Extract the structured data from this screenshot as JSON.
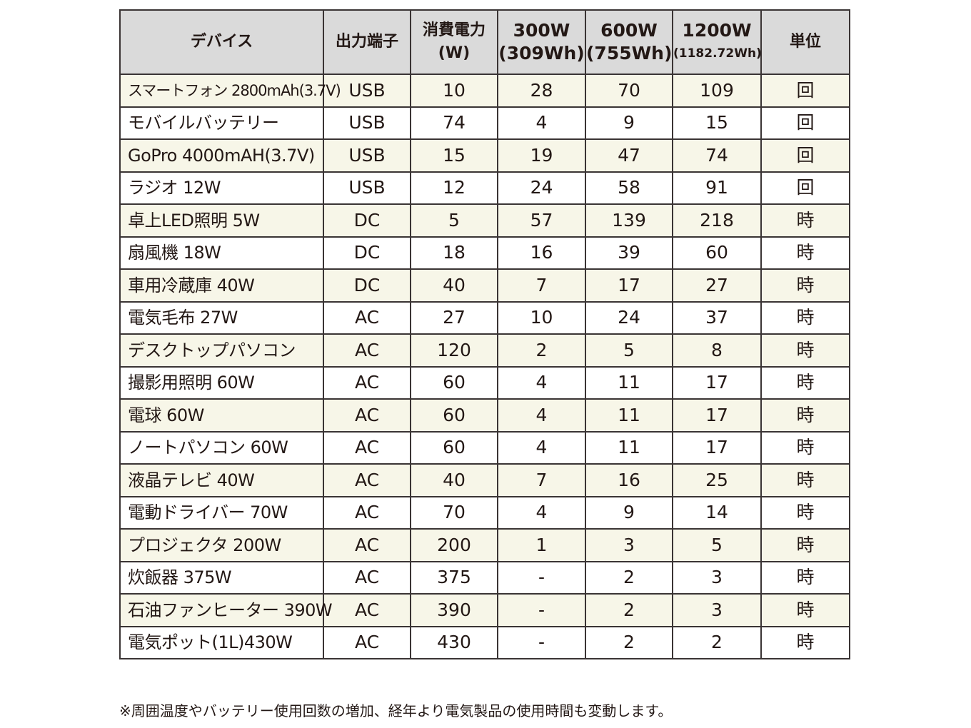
{
  "header": {
    "device": "デバイス",
    "port": "出力端子",
    "power_line1": "消費電力",
    "power_line2": "(W)",
    "cap300_line1": "300W",
    "cap300_line2": "(309Wh)",
    "cap600_line1": "600W",
    "cap600_line2": "(755Wh)",
    "cap1200_line1": "1200W",
    "cap1200_line2": "(1182.72Wh)",
    "unit": "単位"
  },
  "rows": [
    {
      "device": "スマートフォン 2800mAh(3.7V)",
      "port": "USB",
      "power": "10",
      "w300": "28",
      "w600": "70",
      "w1200": "109",
      "unit": "回"
    },
    {
      "device": "モバイルバッテリー",
      "port": "USB",
      "power": "74",
      "w300": "4",
      "w600": "9",
      "w1200": "15",
      "unit": "回"
    },
    {
      "device": "GoPro 4000mAH(3.7V)",
      "port": "USB",
      "power": "15",
      "w300": "19",
      "w600": "47",
      "w1200": "74",
      "unit": "回"
    },
    {
      "device": "ラジオ 12W",
      "port": "USB",
      "power": "12",
      "w300": "24",
      "w600": "58",
      "w1200": "91",
      "unit": "回"
    },
    {
      "device": "卓上LED照明 5W",
      "port": "DC",
      "power": "5",
      "w300": "57",
      "w600": "139",
      "w1200": "218",
      "unit": "時"
    },
    {
      "device": "扇風機 18W",
      "port": "DC",
      "power": "18",
      "w300": "16",
      "w600": "39",
      "w1200": "60",
      "unit": "時"
    },
    {
      "device": "車用冷蔵庫 40W",
      "port": "DC",
      "power": "40",
      "w300": "7",
      "w600": "17",
      "w1200": "27",
      "unit": "時"
    },
    {
      "device": "電気毛布 27W",
      "port": "AC",
      "power": "27",
      "w300": "10",
      "w600": "24",
      "w1200": "37",
      "unit": "時"
    },
    {
      "device": "デスクトップパソコン",
      "port": "AC",
      "power": "120",
      "w300": "2",
      "w600": "5",
      "w1200": "8",
      "unit": "時"
    },
    {
      "device": "撮影用照明 60W",
      "port": "AC",
      "power": "60",
      "w300": "4",
      "w600": "11",
      "w1200": "17",
      "unit": "時"
    },
    {
      "device": "電球 60W",
      "port": "AC",
      "power": "60",
      "w300": "4",
      "w600": "11",
      "w1200": "17",
      "unit": "時"
    },
    {
      "device": "ノートパソコン 60W",
      "port": "AC",
      "power": "60",
      "w300": "4",
      "w600": "11",
      "w1200": "17",
      "unit": "時"
    },
    {
      "device": "液晶テレビ 40W",
      "port": "AC",
      "power": "40",
      "w300": "7",
      "w600": "16",
      "w1200": "25",
      "unit": "時"
    },
    {
      "device": "電動ドライバー 70W",
      "port": "AC",
      "power": "70",
      "w300": "4",
      "w600": "9",
      "w1200": "14",
      "unit": "時"
    },
    {
      "device": "プロジェクタ 200W",
      "port": "AC",
      "power": "200",
      "w300": "1",
      "w600": "3",
      "w1200": "5",
      "unit": "時"
    },
    {
      "device": "炊飯器 375W",
      "port": "AC",
      "power": "375",
      "w300": "-",
      "w600": "2",
      "w1200": "3",
      "unit": "時"
    },
    {
      "device": "石油ファンヒーター 390W",
      "port": "AC",
      "power": "390",
      "w300": "-",
      "w600": "2",
      "w1200": "3",
      "unit": "時"
    },
    {
      "device": "電気ポット(1L)430W",
      "port": "AC",
      "power": "430",
      "w300": "-",
      "w600": "2",
      "w1200": "2",
      "unit": "時"
    }
  ],
  "footnote": "※周囲温度やバッテリー使用回数の増加、経年より電気製品の使用時間も変動します。"
}
